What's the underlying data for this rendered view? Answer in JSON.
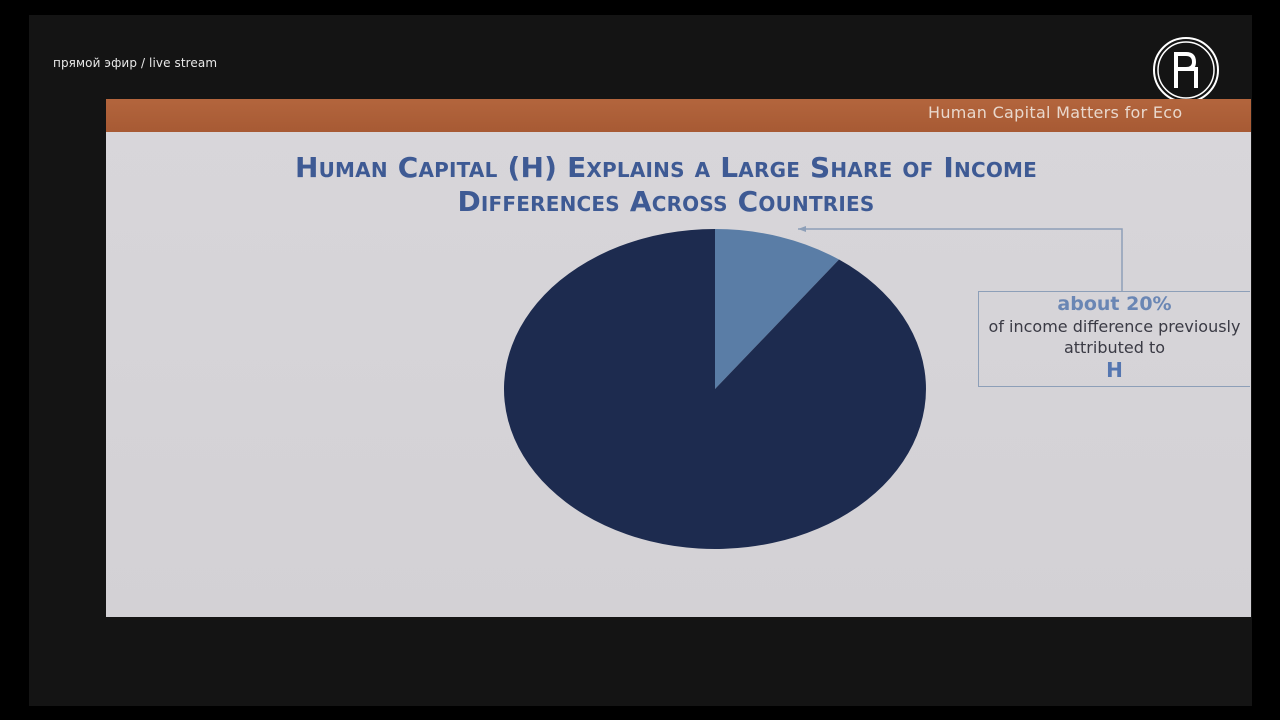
{
  "stream": {
    "label": "прямой эфир / live stream"
  },
  "slide": {
    "header_title": "Human Capital Matters for Eco"
  },
  "annotation": {
    "lead": "about 20%",
    "text": "of income difference previously attributed to",
    "symbol": "H"
  },
  "colors": {
    "header": "#a95c35",
    "title": "#3e5a94",
    "slice_small": "#5a7da6",
    "slice_large": "#1d2b4f",
    "connector": "#8d9fb8"
  },
  "chart_data": {
    "type": "pie",
    "title": "Human Capital (H) Explains a Large Share of Income Differences Across Countries",
    "slices": [
      {
        "value": 10
      },
      {
        "value": 90
      }
    ],
    "legend": "none"
  }
}
